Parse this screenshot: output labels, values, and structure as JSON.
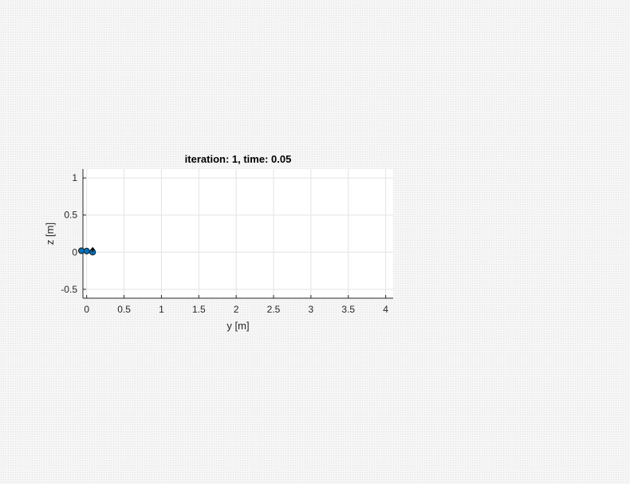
{
  "chart_data": {
    "type": "scatter",
    "title": "iteration: 1, time: 0.05",
    "xlabel": "y [m]",
    "ylabel": "z [m]",
    "xlim": [
      -0.05,
      4.1
    ],
    "ylim": [
      -0.62,
      1.12
    ],
    "grid": true,
    "xticks": [
      0,
      0.5,
      1,
      1.5,
      2,
      2.5,
      3,
      3.5,
      4
    ],
    "xtick_labels": [
      "0",
      "0.5",
      "1",
      "1.5",
      "2",
      "2.5",
      "3",
      "3.5",
      "4"
    ],
    "yticks": [
      -0.5,
      0,
      0.5,
      1
    ],
    "ytick_labels": [
      "-0.5",
      "0",
      "0.5",
      "1"
    ],
    "series": [
      {
        "name": "links",
        "kind": "line",
        "color": "#000000",
        "x": [
          -0.07,
          0.0,
          0.08
        ],
        "y": [
          0.02,
          0.015,
          0.0
        ]
      },
      {
        "name": "joints",
        "kind": "marker",
        "color": "#0072bd",
        "edge_color": "#1a1a1a",
        "x": [
          -0.07,
          0.0,
          0.08
        ],
        "y": [
          0.02,
          0.015,
          0.0
        ]
      },
      {
        "name": "arrow",
        "kind": "vector",
        "color": "#000000",
        "x": [
          0.08
        ],
        "y": [
          0.0
        ],
        "dx": [
          0.0
        ],
        "dy": [
          0.06
        ]
      }
    ]
  },
  "colors": {
    "axes_bg": "#ffffff",
    "grid": "#e3e3e3",
    "axis": "#262626"
  }
}
